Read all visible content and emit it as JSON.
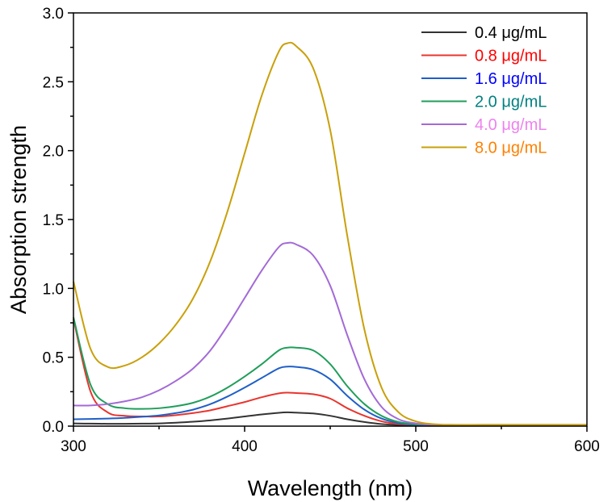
{
  "chart_data": {
    "type": "line",
    "title": "",
    "xlabel": "Wavelength (nm)",
    "ylabel": "Absorption strength",
    "xlim": [
      300,
      600
    ],
    "ylim": [
      0,
      3.0
    ],
    "x_ticks": [
      "300",
      "400",
      "500",
      "600"
    ],
    "y_ticks": [
      "0.0",
      "0.5",
      "1.0",
      "1.5",
      "2.0",
      "2.5",
      "3.0"
    ],
    "grid": false,
    "legend_position": "top-right",
    "x": [
      300,
      310,
      320,
      330,
      340,
      350,
      360,
      370,
      380,
      390,
      400,
      410,
      420,
      425,
      430,
      440,
      450,
      460,
      470,
      480,
      490,
      500,
      510,
      520,
      540,
      560,
      600
    ],
    "series": [
      {
        "name": "0.4 μg/mL",
        "color": "#333333",
        "text_color": "#000000",
        "values": [
          0.02,
          0.018,
          0.017,
          0.017,
          0.018,
          0.02,
          0.025,
          0.032,
          0.042,
          0.055,
          0.07,
          0.085,
          0.097,
          0.1,
          0.098,
          0.092,
          0.075,
          0.05,
          0.03,
          0.015,
          0.008,
          0.005,
          0.004,
          0.003,
          0.003,
          0.003,
          0.003
        ]
      },
      {
        "name": "0.8 μg/mL",
        "color": "#e8352e",
        "text_color": "#ff0000",
        "values": [
          0.78,
          0.25,
          0.1,
          0.075,
          0.07,
          0.07,
          0.08,
          0.095,
          0.115,
          0.145,
          0.175,
          0.21,
          0.238,
          0.243,
          0.24,
          0.232,
          0.2,
          0.13,
          0.075,
          0.035,
          0.015,
          0.008,
          0.006,
          0.005,
          0.005,
          0.005,
          0.005
        ]
      },
      {
        "name": "1.6 μg/mL",
        "color": "#1f5fc8",
        "text_color": "#0000ff",
        "values": [
          0.05,
          0.052,
          0.055,
          0.06,
          0.068,
          0.078,
          0.095,
          0.12,
          0.16,
          0.215,
          0.28,
          0.35,
          0.42,
          0.432,
          0.43,
          0.41,
          0.34,
          0.22,
          0.12,
          0.055,
          0.022,
          0.01,
          0.007,
          0.006,
          0.006,
          0.006,
          0.006
        ]
      },
      {
        "name": "2.0 μg/mL",
        "color": "#1f9e5a",
        "text_color": "#008080",
        "values": [
          0.79,
          0.3,
          0.16,
          0.13,
          0.125,
          0.13,
          0.145,
          0.17,
          0.215,
          0.28,
          0.36,
          0.45,
          0.55,
          0.57,
          0.57,
          0.55,
          0.45,
          0.29,
          0.16,
          0.075,
          0.03,
          0.013,
          0.008,
          0.007,
          0.007,
          0.007,
          0.007
        ]
      },
      {
        "name": "4.0 μg/mL",
        "color": "#a36ad6",
        "text_color": "#ee82ee",
        "values": [
          0.15,
          0.15,
          0.16,
          0.18,
          0.21,
          0.26,
          0.33,
          0.42,
          0.55,
          0.73,
          0.93,
          1.13,
          1.3,
          1.33,
          1.32,
          1.24,
          1.02,
          0.66,
          0.34,
          0.14,
          0.05,
          0.02,
          0.01,
          0.008,
          0.008,
          0.008,
          0.008
        ]
      },
      {
        "name": "8.0 μg/mL",
        "color": "#c9a00a",
        "text_color": "#ff8000",
        "values": [
          1.05,
          0.56,
          0.43,
          0.44,
          0.5,
          0.6,
          0.74,
          0.93,
          1.2,
          1.56,
          1.98,
          2.4,
          2.72,
          2.78,
          2.76,
          2.6,
          2.15,
          1.38,
          0.7,
          0.28,
          0.1,
          0.035,
          0.015,
          0.01,
          0.01,
          0.01,
          0.01
        ]
      }
    ]
  }
}
